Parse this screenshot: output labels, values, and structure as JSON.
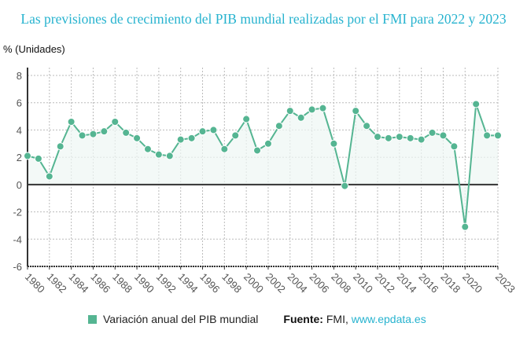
{
  "chart_data": {
    "type": "line",
    "title": "Las previsiones de crecimiento del PIB mundial realizadas por el FMI para 2022 y 2023",
    "ylabel": "% (Unidades)",
    "xlabel": "",
    "ylim": [
      -6,
      8
    ],
    "yticks": [
      "-6",
      "-4",
      "-2",
      "0",
      "2",
      "4",
      "6",
      "8"
    ],
    "xticks": [
      "1980",
      "1982",
      "1984",
      "1986",
      "1988",
      "1990",
      "1992",
      "1994",
      "1996",
      "1998",
      "2000",
      "2002",
      "2004",
      "2006",
      "2008",
      "2010",
      "2012",
      "2014",
      "2016",
      "2018",
      "2020",
      "2023"
    ],
    "grid": true,
    "legend_position": "bottom",
    "series": [
      {
        "name": "Variación anual del PIB mundial",
        "color": "#55b592",
        "x": [
          1980,
          1981,
          1982,
          1983,
          1984,
          1985,
          1986,
          1987,
          1988,
          1989,
          1990,
          1991,
          1992,
          1993,
          1994,
          1995,
          1996,
          1997,
          1998,
          1999,
          2000,
          2001,
          2002,
          2003,
          2004,
          2005,
          2006,
          2007,
          2008,
          2009,
          2010,
          2011,
          2012,
          2013,
          2014,
          2015,
          2016,
          2017,
          2018,
          2019,
          2020,
          2021,
          2022,
          2023
        ],
        "values": [
          2.1,
          1.9,
          0.6,
          2.8,
          4.6,
          3.6,
          3.7,
          3.9,
          4.6,
          3.8,
          3.4,
          2.6,
          2.2,
          2.1,
          3.3,
          3.4,
          3.9,
          4.0,
          2.6,
          3.6,
          4.8,
          2.5,
          3.0,
          4.3,
          5.4,
          4.9,
          5.5,
          5.6,
          3.0,
          -0.1,
          5.4,
          4.3,
          3.5,
          3.4,
          3.5,
          3.4,
          3.3,
          3.8,
          3.6,
          2.8,
          -3.1,
          5.9,
          3.6,
          3.6
        ]
      }
    ]
  },
  "source": {
    "label": "Fuente:",
    "value": "FMI,",
    "link": "www.epdata.es"
  }
}
